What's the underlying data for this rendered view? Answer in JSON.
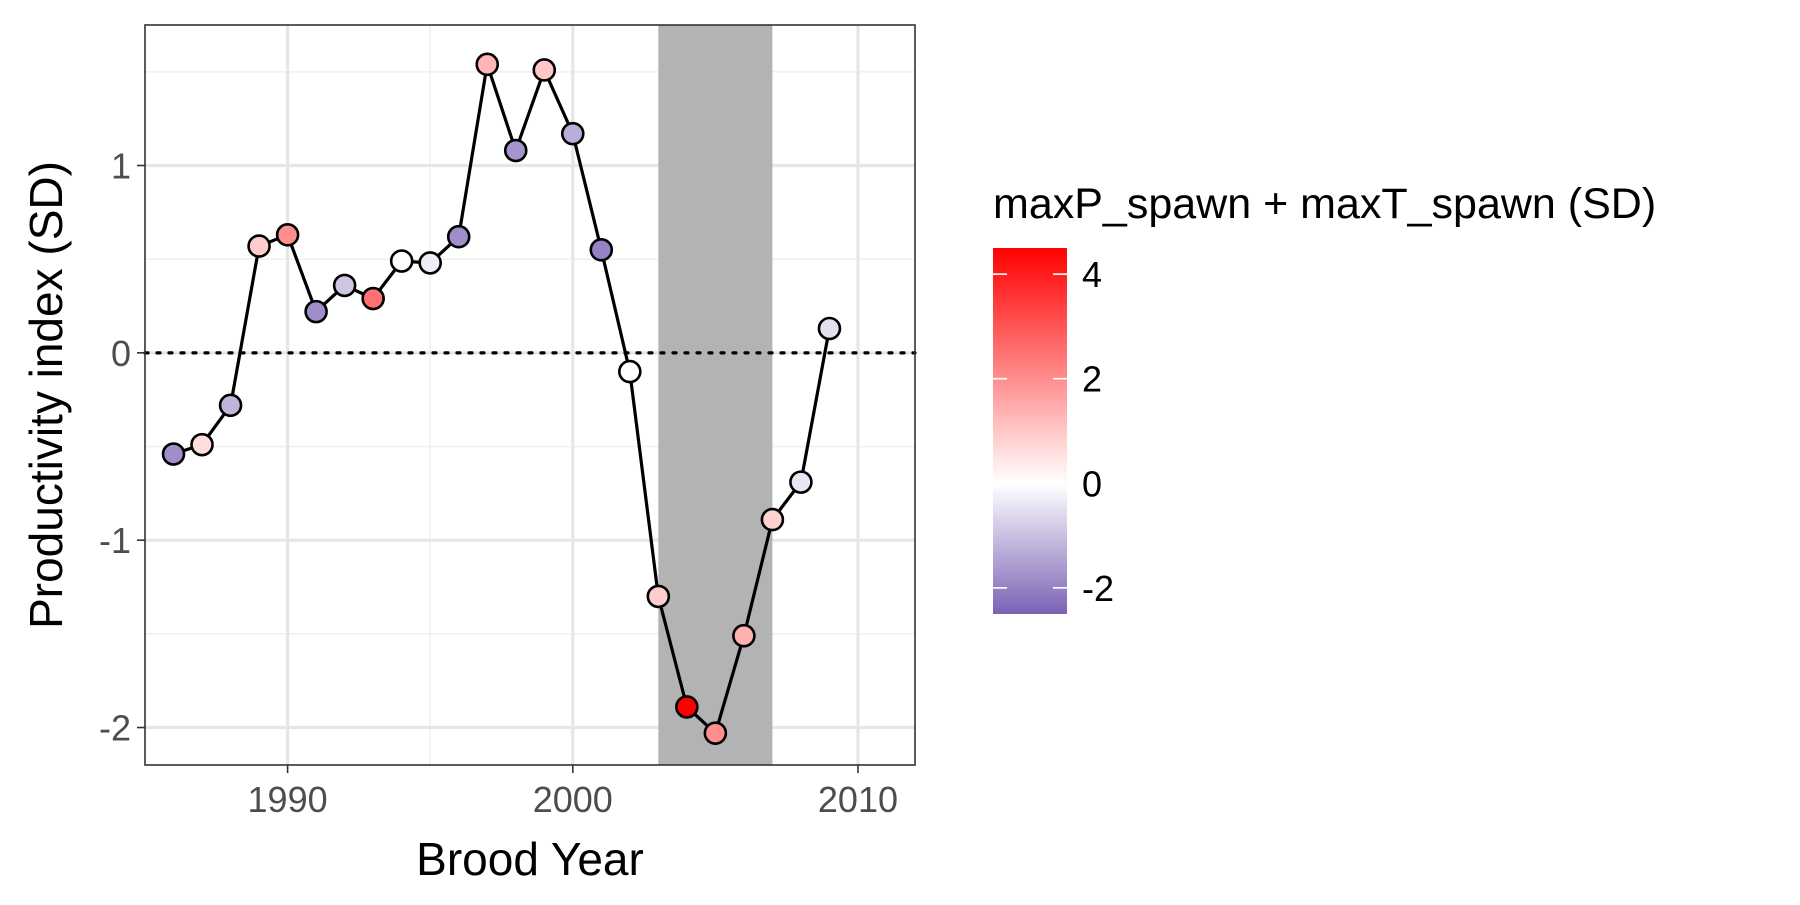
{
  "chart_data": {
    "type": "line",
    "title": "",
    "xlabel": "Brood Year",
    "ylabel": "Productivity index (SD)",
    "xlim": [
      1985,
      2012
    ],
    "ylim": [
      -2.2,
      1.75
    ],
    "x_ticks": [
      1990,
      2000,
      2010
    ],
    "x_tick_labels": [
      "1990",
      "2000",
      "2010"
    ],
    "y_ticks": [
      -2,
      -1,
      0,
      1
    ],
    "y_tick_labels": [
      "-2",
      "-1",
      "0",
      "1"
    ],
    "grid": true,
    "reference_line": {
      "y": 0,
      "style": "dotted"
    },
    "shaded_region": {
      "x": [
        2003,
        2007
      ],
      "color": "#b3b3b3"
    },
    "series": [
      {
        "x": [
          1986,
          1987,
          1988,
          1989,
          1990,
          1991,
          1992,
          1993,
          1994,
          1995,
          1996,
          1997,
          1998,
          1999,
          2000,
          2001,
          2002,
          2003,
          2004,
          2005,
          2006,
          2007,
          2008,
          2009
        ],
        "y": [
          -0.54,
          -0.49,
          -0.28,
          0.57,
          0.63,
          0.22,
          0.36,
          0.29,
          0.49,
          0.48,
          0.62,
          1.54,
          1.08,
          1.51,
          1.17,
          0.55,
          -0.1,
          -1.3,
          -1.89,
          -2.03,
          -1.51,
          -0.89,
          -0.69,
          0.13
        ],
        "color_values": [
          -1.8,
          0.6,
          -1.2,
          0.9,
          2.0,
          -1.8,
          -0.9,
          2.5,
          0.0,
          -0.3,
          -1.8,
          1.3,
          -1.7,
          1.0,
          -1.3,
          -2.0,
          0.0,
          0.9,
          4.5,
          2.0,
          1.4,
          0.8,
          -0.4,
          -0.5
        ]
      }
    ],
    "colorbar": {
      "title": "maxP_spawn + maxT_spawn (SD)",
      "range": [
        -2.5,
        4.5
      ],
      "ticks": [
        -2,
        0,
        2,
        4
      ],
      "tick_labels": [
        "-2",
        "0",
        "2",
        "4"
      ],
      "low_color": "#7b62b5",
      "mid_color": "#ffffff",
      "high_color": "#ff0000"
    },
    "colors": {
      "line": "#000000",
      "grid_major": "#e6e6e6",
      "grid_minor": "#f1f1f1",
      "panel_border": "#333333",
      "axis_text": "#4d4d4d"
    }
  }
}
